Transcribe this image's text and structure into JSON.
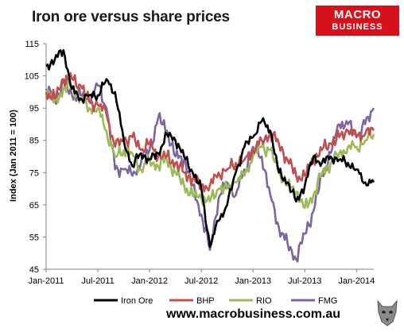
{
  "header": {
    "title": "Iron ore versus share prices"
  },
  "logo": {
    "line1": "MACRO",
    "line2": "BUSINESS",
    "color": "#d7111b"
  },
  "footer": {
    "url": "www.macrobusiness.com.au"
  },
  "chart_data": {
    "type": "line",
    "title": "Iron ore versus share prices",
    "ylabel": "Index (Jan 2011 = 100)",
    "xlabel": "",
    "x_range": [
      "2011-01",
      "2014-03"
    ],
    "ylim": [
      45,
      115
    ],
    "yticks": [
      45,
      55,
      65,
      75,
      85,
      95,
      105,
      115
    ],
    "xticks": [
      "Jan-2011",
      "Jul-2011",
      "Jan-2012",
      "Jul-2012",
      "Jan-2013",
      "Jul-2013",
      "Jan-2014"
    ],
    "grid": false,
    "legend_position": "bottom",
    "series": [
      {
        "name": "Iron Ore",
        "color": "#000000",
        "x": [
          "2011-01",
          "2011-02",
          "2011-03",
          "2011-04",
          "2011-05",
          "2011-06",
          "2011-07",
          "2011-08",
          "2011-09",
          "2011-10",
          "2011-11",
          "2011-12",
          "2012-01",
          "2012-02",
          "2012-03",
          "2012-04",
          "2012-05",
          "2012-06",
          "2012-07",
          "2012-08",
          "2012-09",
          "2012-10",
          "2012-11",
          "2012-12",
          "2013-01",
          "2013-02",
          "2013-03",
          "2013-04",
          "2013-05",
          "2013-06",
          "2013-07",
          "2013-08",
          "2013-09",
          "2013-10",
          "2013-11",
          "2013-12",
          "2014-01",
          "2014-02",
          "2014-03"
        ],
        "values": [
          108,
          110,
          113,
          101,
          98,
          99,
          99,
          104,
          100,
          85,
          77,
          81,
          79,
          81,
          87,
          85,
          80,
          75,
          70,
          52,
          60,
          65,
          75,
          83,
          86,
          91,
          88,
          75,
          72,
          66,
          71,
          80,
          78,
          80,
          79,
          78,
          76,
          72,
          72
        ]
      },
      {
        "name": "BHP",
        "color": "#c0504d",
        "x": [
          "2011-01",
          "2011-02",
          "2011-03",
          "2011-04",
          "2011-05",
          "2011-06",
          "2011-07",
          "2011-08",
          "2011-09",
          "2011-10",
          "2011-11",
          "2011-12",
          "2012-01",
          "2012-02",
          "2012-03",
          "2012-04",
          "2012-05",
          "2012-06",
          "2012-07",
          "2012-08",
          "2012-09",
          "2012-10",
          "2012-11",
          "2012-12",
          "2013-01",
          "2013-02",
          "2013-03",
          "2013-04",
          "2013-05",
          "2013-06",
          "2013-07",
          "2013-08",
          "2013-09",
          "2013-10",
          "2013-11",
          "2013-12",
          "2014-01",
          "2014-02",
          "2014-03"
        ],
        "values": [
          100,
          98,
          104,
          104,
          102,
          97,
          96,
          93,
          83,
          85,
          86,
          82,
          84,
          80,
          80,
          78,
          75,
          73,
          71,
          71,
          75,
          76,
          78,
          79,
          82,
          85,
          87,
          84,
          79,
          74,
          74,
          79,
          82,
          84,
          86,
          88,
          86,
          87,
          88
        ]
      },
      {
        "name": "RIO",
        "color": "#9bbb59",
        "x": [
          "2011-01",
          "2011-02",
          "2011-03",
          "2011-04",
          "2011-05",
          "2011-06",
          "2011-07",
          "2011-08",
          "2011-09",
          "2011-10",
          "2011-11",
          "2011-12",
          "2012-01",
          "2012-02",
          "2012-03",
          "2012-04",
          "2012-05",
          "2012-06",
          "2012-07",
          "2012-08",
          "2012-09",
          "2012-10",
          "2012-11",
          "2012-12",
          "2013-01",
          "2013-02",
          "2013-03",
          "2013-04",
          "2013-05",
          "2013-06",
          "2013-07",
          "2013-08",
          "2013-09",
          "2013-10",
          "2013-11",
          "2013-12",
          "2014-01",
          "2014-02",
          "2014-03"
        ],
        "values": [
          100,
          97,
          101,
          102,
          98,
          95,
          95,
          88,
          80,
          82,
          81,
          76,
          79,
          77,
          79,
          75,
          71,
          68,
          67,
          66,
          70,
          70,
          72,
          74,
          80,
          83,
          82,
          75,
          71,
          69,
          64,
          68,
          75,
          78,
          81,
          83,
          83,
          85,
          87
        ]
      },
      {
        "name": "FMG",
        "color": "#8064a2",
        "x": [
          "2011-01",
          "2011-02",
          "2011-03",
          "2011-04",
          "2011-05",
          "2011-06",
          "2011-07",
          "2011-08",
          "2011-09",
          "2011-10",
          "2011-11",
          "2011-12",
          "2012-01",
          "2012-02",
          "2012-03",
          "2012-04",
          "2012-05",
          "2012-06",
          "2012-07",
          "2012-08",
          "2012-09",
          "2012-10",
          "2012-11",
          "2012-12",
          "2013-01",
          "2013-02",
          "2013-03",
          "2013-04",
          "2013-05",
          "2013-06",
          "2013-07",
          "2013-08",
          "2013-09",
          "2013-10",
          "2013-11",
          "2013-12",
          "2014-01",
          "2014-02",
          "2014-03"
        ],
        "values": [
          101,
          97,
          103,
          99,
          99,
          97,
          102,
          95,
          76,
          76,
          74,
          78,
          82,
          92,
          88,
          80,
          79,
          71,
          62,
          51,
          67,
          72,
          68,
          76,
          83,
          80,
          68,
          58,
          53,
          48,
          56,
          63,
          74,
          81,
          90,
          90,
          86,
          90,
          95
        ]
      }
    ]
  }
}
